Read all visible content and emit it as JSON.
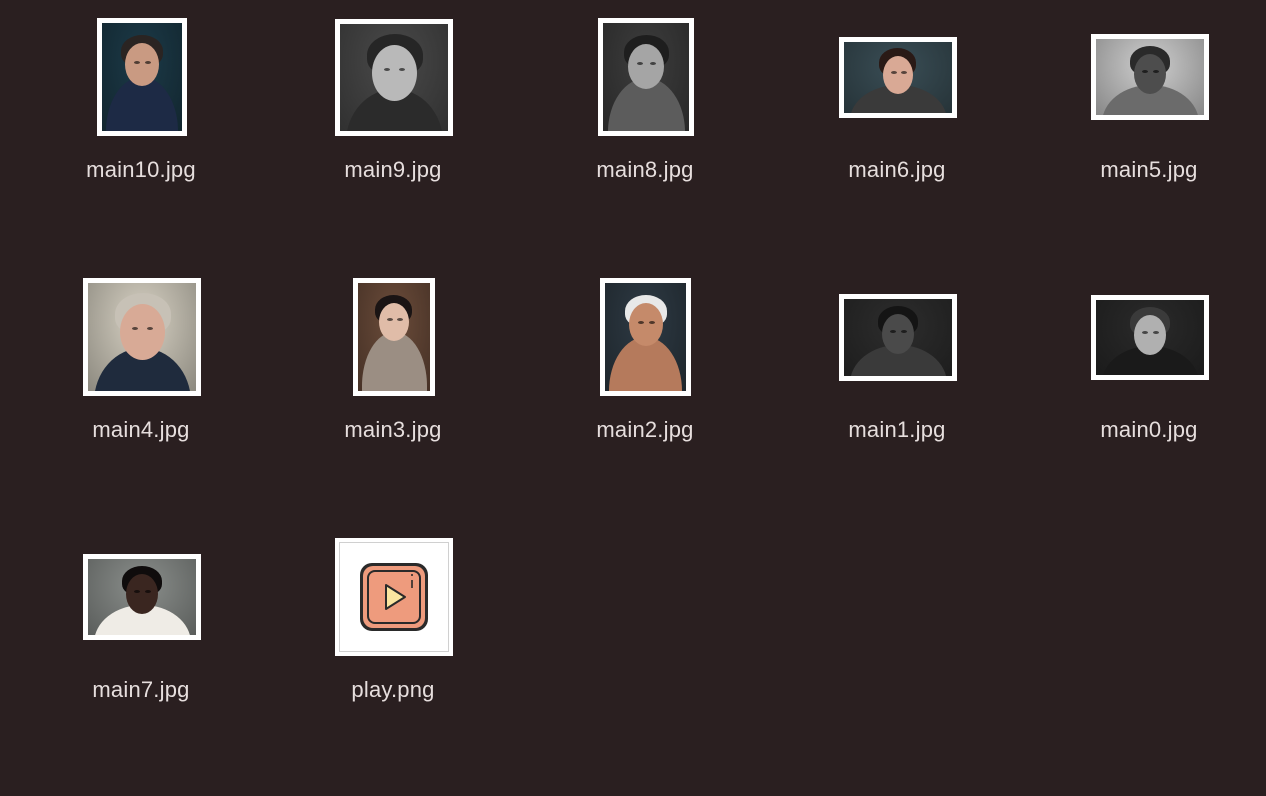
{
  "files": [
    {
      "name": "main10.jpg",
      "icon": "portrait-thumbnail",
      "colors": {
        "bg": "#1c3a48",
        "skin": "#c99a82",
        "hair": "#2a2422",
        "body": "#1d2a45"
      }
    },
    {
      "name": "main9.jpg",
      "icon": "portrait-thumbnail",
      "colors": {
        "bg": "#4a4a4a",
        "skin": "#b9b9b9",
        "hair": "#262626",
        "body": "#2b2b2b"
      }
    },
    {
      "name": "main8.jpg",
      "icon": "portrait-thumbnail",
      "colors": {
        "bg": "#3d3d3d",
        "skin": "#a5a5a5",
        "hair": "#1e1e1e",
        "body": "#5c5c5c"
      }
    },
    {
      "name": "main6.jpg",
      "icon": "portrait-thumbnail",
      "colors": {
        "bg": "#3a4e56",
        "skin": "#d9a995",
        "hair": "#2a1a16",
        "body": "#3a3a3a"
      }
    },
    {
      "name": "main5.jpg",
      "icon": "portrait-thumbnail",
      "colors": {
        "bg": "#cfcfcf",
        "skin": "#4d4d4d",
        "hair": "#2a2a2a",
        "body": "#6b6b6b"
      }
    },
    {
      "name": "main4.jpg",
      "icon": "portrait-thumbnail",
      "colors": {
        "bg": "#d8d2c4",
        "skin": "#d8aa96",
        "hair": "#c7c1b6",
        "body": "#1f2b3d"
      }
    },
    {
      "name": "main3.jpg",
      "icon": "portrait-thumbnail",
      "colors": {
        "bg": "#6b4c3a",
        "skin": "#e0bca8",
        "hair": "#1a1414",
        "body": "#9b8e83"
      }
    },
    {
      "name": "main2.jpg",
      "icon": "portrait-thumbnail",
      "colors": {
        "bg": "#2e3a44",
        "skin": "#c58a6a",
        "hair": "#e8e8e8",
        "body": "#b57a5c"
      }
    },
    {
      "name": "main1.jpg",
      "icon": "portrait-thumbnail",
      "colors": {
        "bg": "#2d2d2d",
        "skin": "#4a4a4a",
        "hair": "#141414",
        "body": "#3a3a3a"
      }
    },
    {
      "name": "main0.jpg",
      "icon": "portrait-thumbnail",
      "colors": {
        "bg": "#2a2a2a",
        "skin": "#b0b0b0",
        "hair": "#3a3a3a",
        "body": "#1a1a1a"
      }
    },
    {
      "name": "main7.jpg",
      "icon": "portrait-thumbnail",
      "colors": {
        "bg": "#8b8f8c",
        "skin": "#3a2620",
        "hair": "#0f0c0c",
        "body": "#efece6"
      }
    },
    {
      "name": "play.png",
      "icon": "play-button-icon",
      "colors": {
        "bg": "#ffffff",
        "button": "#ee9b7d",
        "triangle": "#fbe6a0",
        "outline": "#2a2a2a"
      }
    }
  ]
}
